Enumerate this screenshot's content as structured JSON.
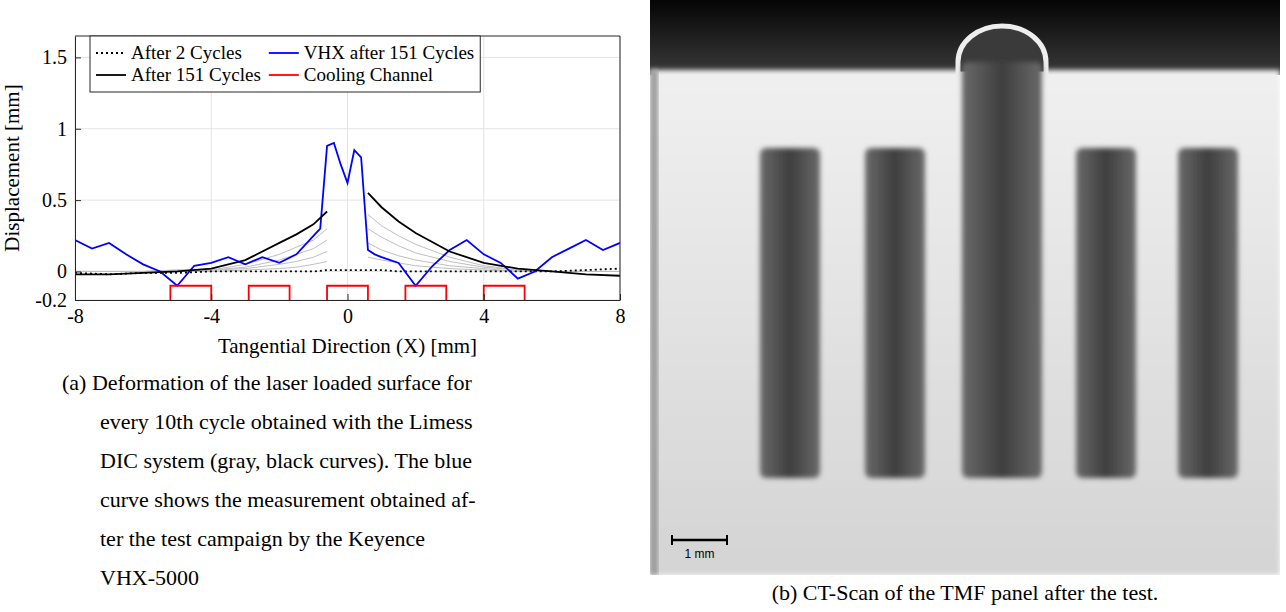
{
  "chart_data": {
    "type": "line",
    "xlabel": "Tangential Direction (X) [mm]",
    "ylabel": "Displacement [mm]",
    "xlim": [
      -8,
      8
    ],
    "xticks": [
      -8,
      -4,
      0,
      4,
      8
    ],
    "ylim": [
      -0.2,
      1.65
    ],
    "yticks": [
      -0.2,
      0,
      0.5,
      1,
      1.5
    ],
    "grid": true,
    "legend": "top-left",
    "caption_lines": [
      "(a) Deformation of the laser loaded surface for",
      "every 10th cycle obtained with the Limess",
      "DIC system (gray, black curves). The blue",
      "curve shows the measurement obtained af-",
      "ter the test campaign by the Keyence",
      "VHX-5000"
    ],
    "series": [
      {
        "name": "After 2 Cycles",
        "color": "#000000",
        "line_style": "dotted",
        "x": [
          -8,
          -7,
          -6,
          -5,
          -4,
          -3,
          -2,
          -1.5,
          -1,
          -0.6,
          0,
          0.6,
          1,
          1.5,
          2,
          3,
          4,
          5,
          6,
          7,
          8
        ],
        "values": [
          -0.01,
          -0.02,
          -0.01,
          -0.01,
          0,
          0,
          0,
          0,
          0,
          0.01,
          0.01,
          0.01,
          0.01,
          0,
          0,
          0,
          0,
          0,
          0,
          0.01,
          0.02
        ]
      },
      {
        "name": "VHX after 151 Cycles",
        "color": "#0000ff",
        "line_style": "solid",
        "x": [
          -8,
          -7.5,
          -7,
          -6.5,
          -6,
          -5.5,
          -5,
          -4.5,
          -4,
          -3.5,
          -3,
          -2.5,
          -2,
          -1.5,
          -1,
          -0.8,
          -0.6,
          -0.4,
          -0.2,
          0,
          0.2,
          0.4,
          0.6,
          0.8,
          1,
          1.5,
          2,
          2.5,
          3,
          3.5,
          4,
          4.5,
          5,
          5.5,
          6,
          6.5,
          7,
          7.5,
          8
        ],
        "values": [
          0.22,
          0.16,
          0.2,
          0.12,
          0.05,
          0.0,
          -0.1,
          0.04,
          0.06,
          0.1,
          0.05,
          0.1,
          0.06,
          0.12,
          0.25,
          0.3,
          0.88,
          0.9,
          0.75,
          0.62,
          0.85,
          0.8,
          0.15,
          0.12,
          0.1,
          0.06,
          -0.1,
          0.04,
          0.15,
          0.22,
          0.12,
          0.06,
          -0.05,
          0.0,
          0.1,
          0.16,
          0.22,
          0.15,
          0.2
        ]
      },
      {
        "name": "After 151 Cycles",
        "color": "#000000",
        "line_style": "solid",
        "x": [
          -8,
          -7,
          -6,
          -5,
          -4,
          -3,
          -2,
          -1.5,
          -1,
          -0.6,
          0,
          0.6,
          1,
          1.5,
          2,
          3,
          4,
          5,
          6,
          7,
          8
        ],
        "values": [
          -0.02,
          -0.02,
          -0.01,
          0.0,
          0.02,
          0.08,
          0.2,
          0.26,
          0.33,
          0.42,
          null,
          0.55,
          0.45,
          0.35,
          0.27,
          0.14,
          0.06,
          0.02,
          0.0,
          -0.02,
          -0.03
        ]
      },
      {
        "name": "Cooling Channel",
        "color": "#ff0000",
        "line_style": "solid",
        "x": [
          -5.2,
          -5.2,
          -4,
          -4,
          -3.5,
          -2.9,
          -2.9,
          -1.7,
          -1.7,
          -1.2,
          -0.6,
          -0.6,
          0.6,
          0.6,
          1.2,
          1.7,
          1.7,
          2.9,
          2.9,
          3.5,
          4,
          4,
          5.2,
          5.2
        ],
        "values": [
          -0.2,
          -0.1,
          -0.1,
          -0.2,
          null,
          -0.2,
          -0.1,
          -0.1,
          -0.2,
          null,
          -0.2,
          -0.1,
          -0.1,
          -0.2,
          null,
          -0.2,
          -0.1,
          -0.1,
          -0.2,
          null,
          -0.2,
          -0.1,
          -0.1,
          -0.2
        ]
      },
      {
        "color": "#bfbfbf",
        "line_style": "solid",
        "x": [
          -8,
          -7,
          -6,
          -5,
          -4,
          -3,
          -2,
          -1.5,
          -1,
          -0.6,
          0,
          0.6,
          1,
          1.5,
          2,
          3,
          4,
          5,
          6,
          7,
          8
        ],
        "values": [
          0,
          0,
          0,
          0.01,
          0.01,
          0.05,
          0.12,
          0.17,
          0.22,
          0.3,
          null,
          0.4,
          0.32,
          0.25,
          0.19,
          0.1,
          0.04,
          0.01,
          0,
          0,
          0
        ]
      },
      {
        "color": "#bfbfbf",
        "line_style": "solid",
        "x": [
          -8,
          -7,
          -6,
          -5,
          -4,
          -3,
          -2,
          -1.5,
          -1,
          -0.6,
          0,
          0.6,
          1,
          1.5,
          2,
          3,
          4,
          5,
          6,
          7,
          8
        ],
        "values": [
          0,
          0,
          0,
          0.01,
          0.01,
          0.03,
          0.08,
          0.12,
          0.16,
          0.22,
          null,
          0.3,
          0.24,
          0.18,
          0.13,
          0.07,
          0.03,
          0.01,
          0,
          0,
          0
        ]
      },
      {
        "color": "#bfbfbf",
        "line_style": "solid",
        "x": [
          -8,
          -7,
          -6,
          -5,
          -4,
          -3,
          -2,
          -1.5,
          -1,
          -0.6,
          0,
          0.6,
          1,
          1.5,
          2,
          3,
          4,
          5,
          6,
          7,
          8
        ],
        "values": [
          0,
          0,
          0,
          0,
          0.01,
          0.02,
          0.05,
          0.07,
          0.1,
          0.14,
          null,
          0.2,
          0.15,
          0.11,
          0.08,
          0.04,
          0.02,
          0,
          0,
          0,
          0
        ]
      },
      {
        "color": "#bfbfbf",
        "line_style": "solid",
        "x": [
          -8,
          -7,
          -6,
          -5,
          -4,
          -3,
          -2,
          -1.5,
          -1,
          -0.6,
          0,
          0.6,
          1,
          1.5,
          2,
          3,
          4,
          5,
          6,
          7,
          8
        ],
        "values": [
          0,
          0,
          0,
          0,
          0,
          0.01,
          0.02,
          0.03,
          0.05,
          0.07,
          null,
          0.1,
          0.08,
          0.06,
          0.04,
          0.02,
          0.01,
          0,
          0,
          0,
          0
        ]
      }
    ]
  },
  "image_panel": {
    "caption": "(b) CT-Scan of the TMF panel after the test.",
    "scale_label": "1 mm"
  }
}
